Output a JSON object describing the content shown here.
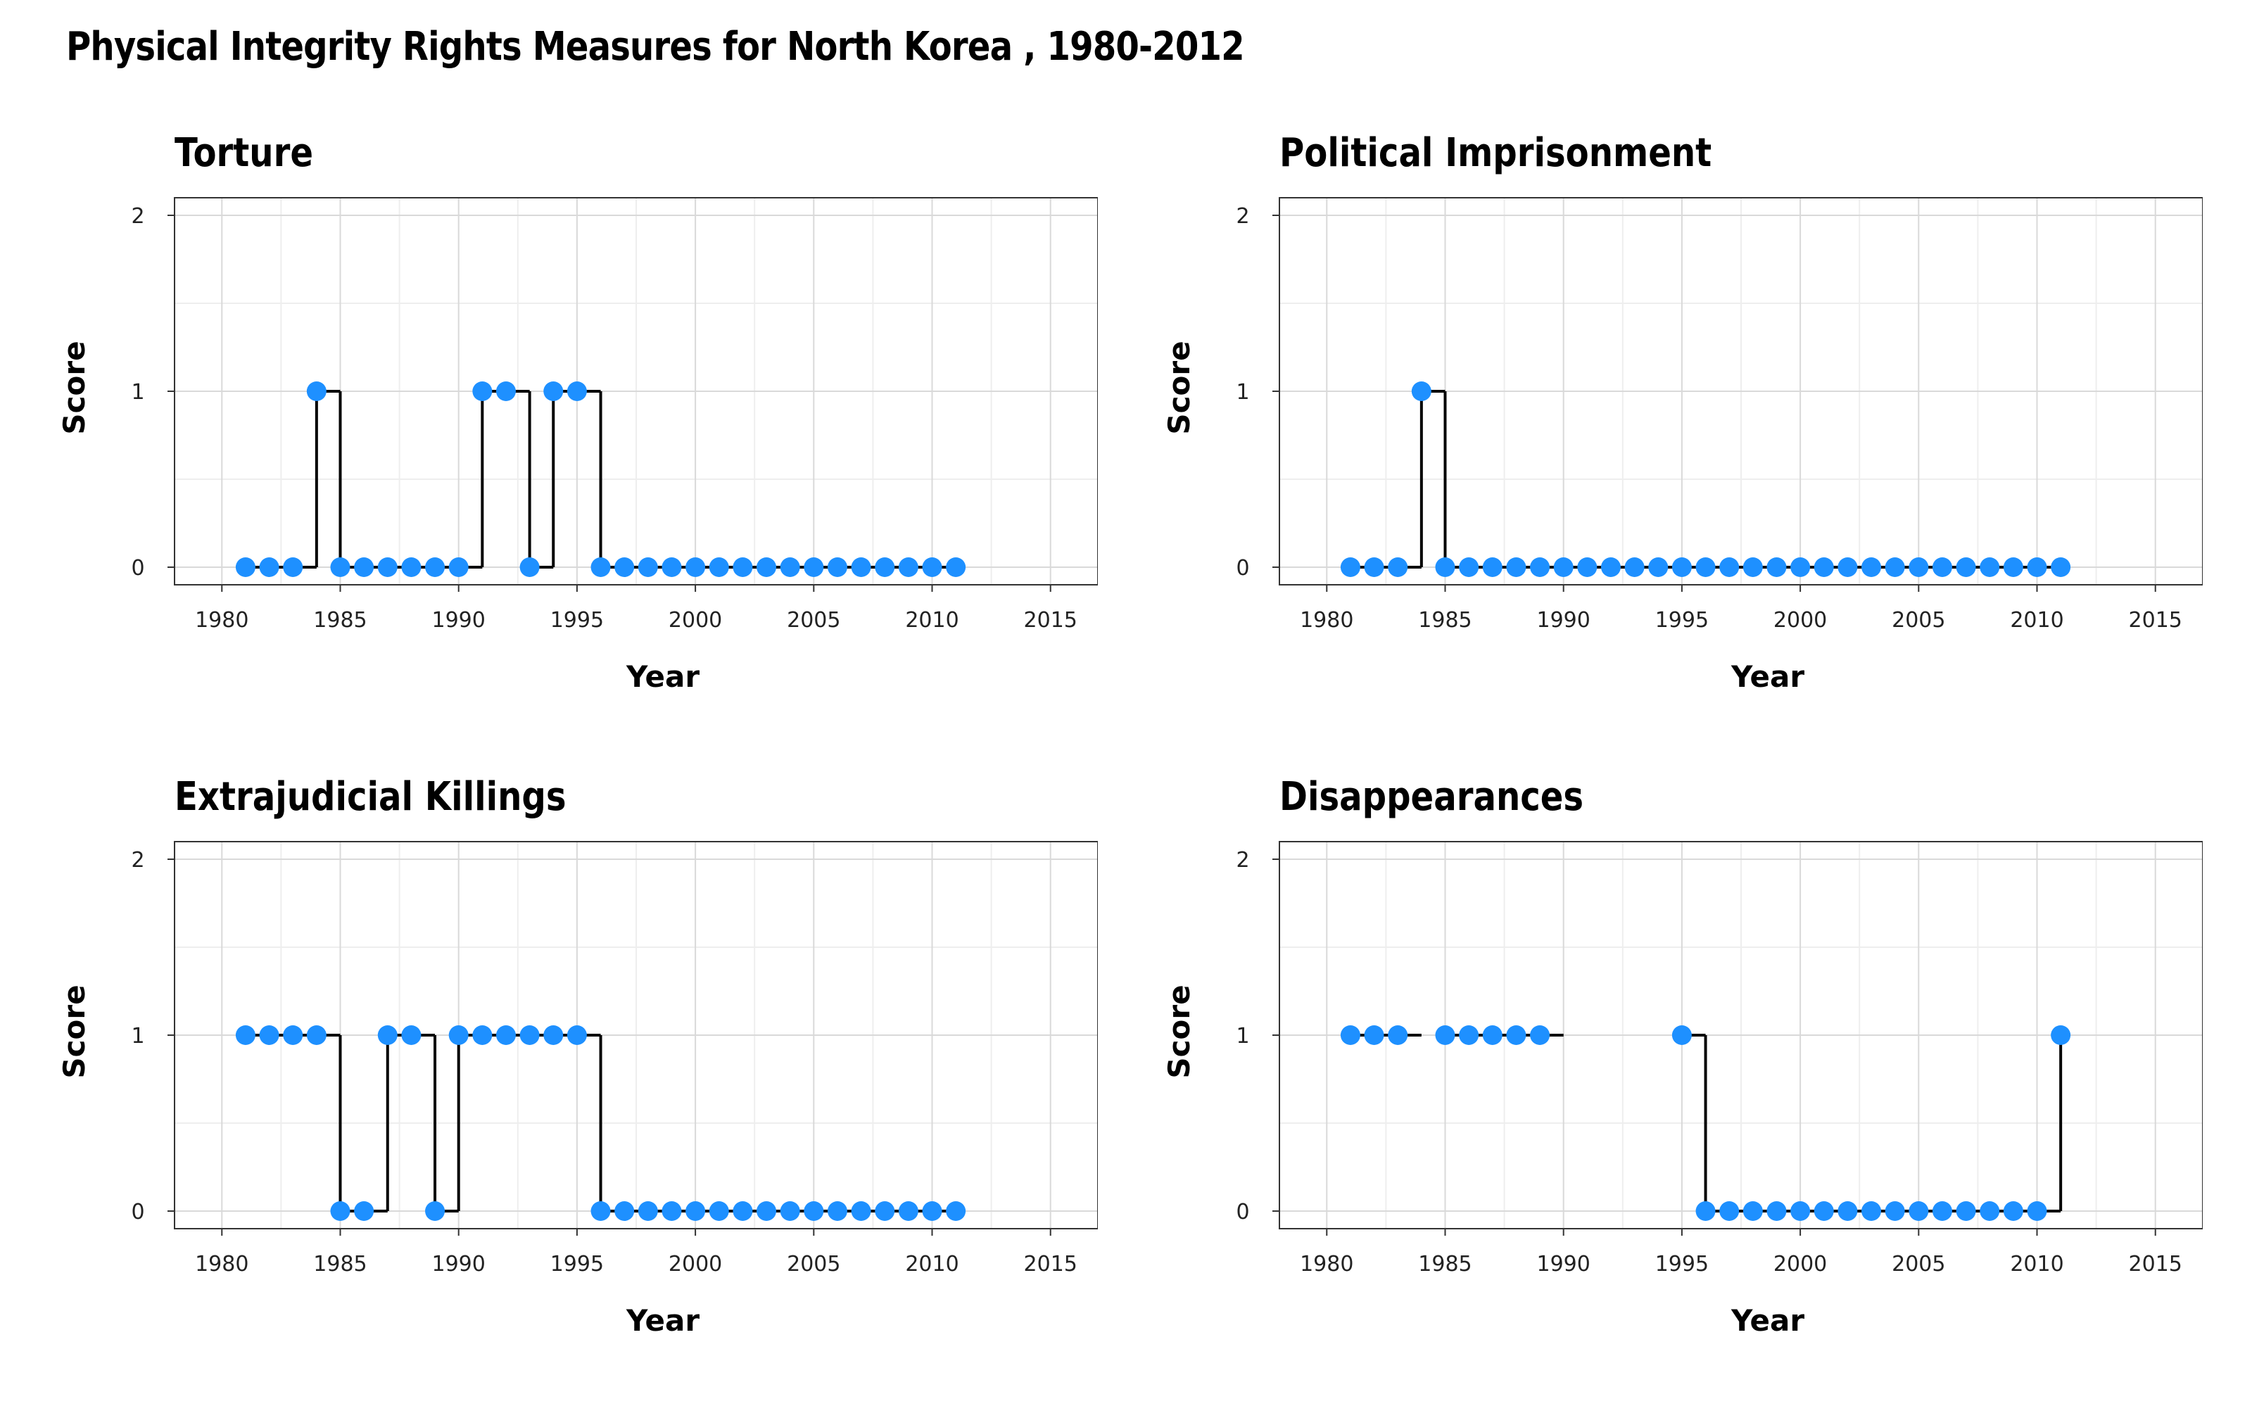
{
  "title": "Physical Integrity Rights Measures for North Korea , 1980-2012",
  "colors": {
    "point": "#1e90ff",
    "line": "#000000",
    "grid": "#d9d9d9",
    "frame": "#333333"
  },
  "chart_data": [
    {
      "type": "line",
      "step": true,
      "title": "Torture",
      "xlabel": "Year",
      "ylabel": "Score",
      "xlim": [
        1978,
        2017
      ],
      "ylim": [
        -0.1,
        2.1
      ],
      "xticks": [
        "1980",
        "1985",
        "1990",
        "1995",
        "2000",
        "2005",
        "2010",
        "2015"
      ],
      "yticks": [
        "0",
        "1",
        "2"
      ],
      "x": [
        1981,
        1982,
        1983,
        1984,
        1985,
        1986,
        1987,
        1988,
        1989,
        1990,
        1991,
        1992,
        1993,
        1994,
        1995,
        1996,
        1997,
        1998,
        1999,
        2000,
        2001,
        2002,
        2003,
        2004,
        2005,
        2006,
        2007,
        2008,
        2009,
        2010,
        2011
      ],
      "values": [
        0,
        0,
        0,
        1,
        0,
        0,
        0,
        0,
        0,
        0,
        1,
        1,
        0,
        1,
        1,
        0,
        0,
        0,
        0,
        0,
        0,
        0,
        0,
        0,
        0,
        0,
        0,
        0,
        0,
        0,
        0
      ]
    },
    {
      "type": "line",
      "step": true,
      "title": "Political Imprisonment",
      "xlabel": "Year",
      "ylabel": "Score",
      "xlim": [
        1978,
        2017
      ],
      "ylim": [
        -0.1,
        2.1
      ],
      "xticks": [
        "1980",
        "1985",
        "1990",
        "1995",
        "2000",
        "2005",
        "2010",
        "2015"
      ],
      "yticks": [
        "0",
        "1",
        "2"
      ],
      "x": [
        1981,
        1982,
        1983,
        1984,
        1985,
        1986,
        1987,
        1988,
        1989,
        1990,
        1991,
        1992,
        1993,
        1994,
        1995,
        1996,
        1997,
        1998,
        1999,
        2000,
        2001,
        2002,
        2003,
        2004,
        2005,
        2006,
        2007,
        2008,
        2009,
        2010,
        2011
      ],
      "values": [
        0,
        0,
        0,
        1,
        0,
        0,
        0,
        0,
        0,
        0,
        0,
        0,
        0,
        0,
        0,
        0,
        0,
        0,
        0,
        0,
        0,
        0,
        0,
        0,
        0,
        0,
        0,
        0,
        0,
        0,
        0
      ]
    },
    {
      "type": "line",
      "step": true,
      "title": "Extrajudicial Killings",
      "xlabel": "Year",
      "ylabel": "Score",
      "xlim": [
        1978,
        2017
      ],
      "ylim": [
        -0.1,
        2.1
      ],
      "xticks": [
        "1980",
        "1985",
        "1990",
        "1995",
        "2000",
        "2005",
        "2010",
        "2015"
      ],
      "yticks": [
        "0",
        "1",
        "2"
      ],
      "x": [
        1981,
        1982,
        1983,
        1984,
        1985,
        1986,
        1987,
        1988,
        1989,
        1990,
        1991,
        1992,
        1993,
        1994,
        1995,
        1996,
        1997,
        1998,
        1999,
        2000,
        2001,
        2002,
        2003,
        2004,
        2005,
        2006,
        2007,
        2008,
        2009,
        2010,
        2011
      ],
      "values": [
        1,
        1,
        1,
        1,
        0,
        0,
        1,
        1,
        0,
        1,
        1,
        1,
        1,
        1,
        1,
        0,
        0,
        0,
        0,
        0,
        0,
        0,
        0,
        0,
        0,
        0,
        0,
        0,
        0,
        0,
        0
      ]
    },
    {
      "type": "line",
      "step": true,
      "title": "Disappearances",
      "xlabel": "Year",
      "ylabel": "Score",
      "xlim": [
        1978,
        2017
      ],
      "ylim": [
        -0.1,
        2.1
      ],
      "xticks": [
        "1980",
        "1985",
        "1990",
        "1995",
        "2000",
        "2005",
        "2010",
        "2015"
      ],
      "yticks": [
        "0",
        "1",
        "2"
      ],
      "x": [
        1981,
        1982,
        1983,
        1984,
        1985,
        1986,
        1987,
        1988,
        1989,
        1990,
        1991,
        1992,
        1993,
        1994,
        1995,
        1996,
        1997,
        1998,
        1999,
        2000,
        2001,
        2002,
        2003,
        2004,
        2005,
        2006,
        2007,
        2008,
        2009,
        2010,
        2011
      ],
      "values": [
        1,
        1,
        1,
        null,
        1,
        1,
        1,
        1,
        1,
        null,
        null,
        null,
        null,
        null,
        1,
        0,
        0,
        0,
        0,
        0,
        0,
        0,
        0,
        0,
        0,
        0,
        0,
        0,
        0,
        0,
        1
      ]
    }
  ]
}
